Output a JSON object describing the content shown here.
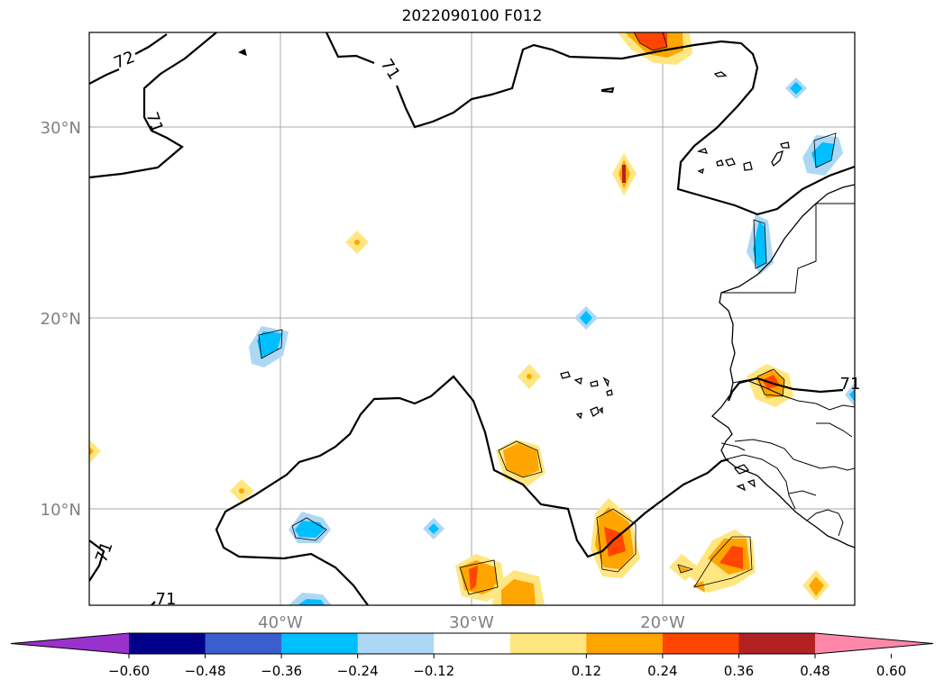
{
  "title": "2022090100 F012",
  "map": {
    "lat_labels": [
      "30°N",
      "20°N",
      "10°N"
    ],
    "lon_labels": [
      "40°W",
      "30°W",
      "20°W"
    ],
    "contour_labels": [
      "72",
      "71",
      "71",
      "71",
      "71",
      "71"
    ]
  },
  "colorbar": {
    "ticks": [
      "−0.60",
      "−0.48",
      "−0.36",
      "−0.24",
      "−0.12",
      "0.12",
      "0.24",
      "0.36",
      "0.48",
      "0.60"
    ],
    "colors": [
      "#9932cc",
      "#00008b",
      "#3a5fcd",
      "#00bfff",
      "#add8f5",
      "#ffffff",
      "#ffe680",
      "#ffa500",
      "#ff4500",
      "#b22222",
      "#ff88aa"
    ]
  }
}
